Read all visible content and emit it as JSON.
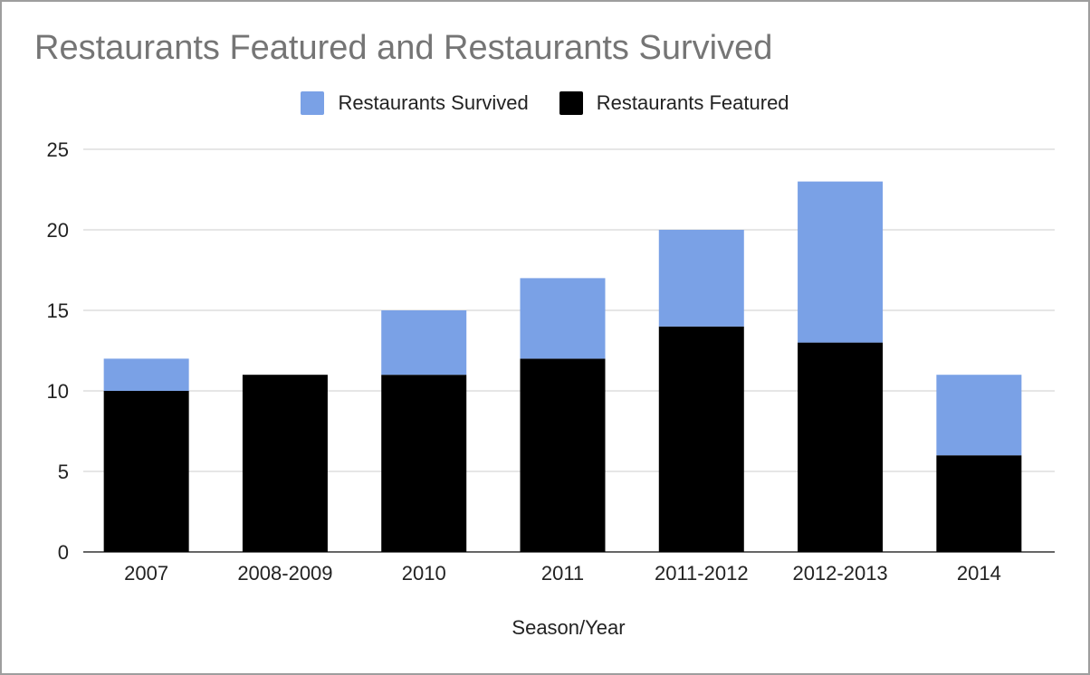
{
  "chart_data": {
    "type": "bar",
    "stacked": true,
    "title": "Restaurants Featured and Restaurants Survived",
    "xlabel": "Season/Year",
    "ylabel": "",
    "categories": [
      "2007",
      "2008-2009",
      "2010",
      "2011",
      "2011-2012",
      "2012-2013",
      "2014"
    ],
    "series": [
      {
        "name": "Restaurants Featured",
        "values": [
          10,
          11,
          11,
          12,
          14,
          13,
          6
        ],
        "color": "#000000"
      },
      {
        "name": "Restaurants Survived",
        "values": [
          2,
          0,
          4,
          5,
          6,
          10,
          5
        ],
        "color": "#7aa1e6"
      }
    ],
    "legend_order": [
      "Restaurants Survived",
      "Restaurants Featured"
    ],
    "ylim": [
      0,
      25
    ],
    "yticks": [
      "0",
      "5",
      "10",
      "15",
      "20",
      "25"
    ],
    "grid": true,
    "legend_position": "top"
  }
}
